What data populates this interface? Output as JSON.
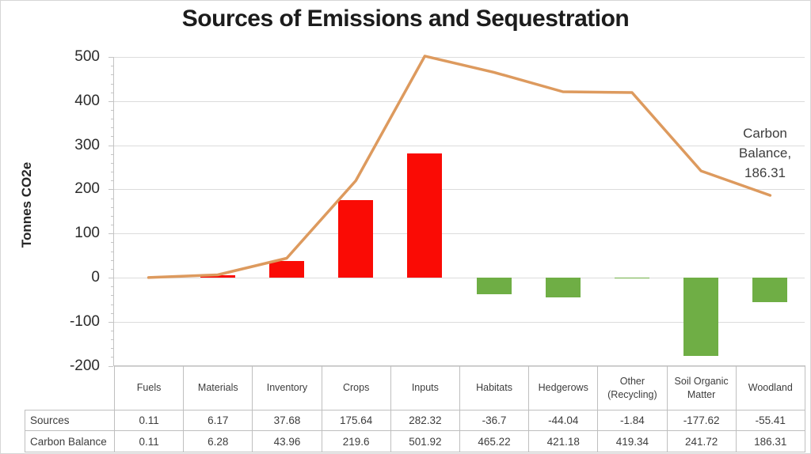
{
  "title": "Sources of Emissions and Sequestration",
  "y_axis": {
    "label": "Tonnes CO2e",
    "ticks": [
      500,
      400,
      300,
      200,
      100,
      0,
      -100,
      -200
    ]
  },
  "annotation": {
    "text": "Carbon Balance, 186.31"
  },
  "colors": {
    "positive_bar": "#fa0b05",
    "negative_bar": "#6fae45",
    "line": "#dd9a5e",
    "gridline": "#dcdcdc",
    "axis": "#c4c4c4",
    "table_border": "#bfbfbf",
    "text": "#3d3d3d"
  },
  "chart_data": {
    "type": "combo-bar-line-waterfall",
    "title": "Sources of Emissions and Sequestration",
    "xlabel": "",
    "ylabel": "Tonnes CO2e",
    "ylim": [
      -200,
      500
    ],
    "grid": "horizontal",
    "legend_position": "none (inline annotation at line end)",
    "categories": [
      "Fuels",
      "Materials",
      "Inventory",
      "Crops",
      "Inputs",
      "Habitats",
      "Hedgerows",
      "Other (Recycling)",
      "Soil Organic Matter",
      "Woodland"
    ],
    "series": [
      {
        "name": "Sources",
        "type": "bar",
        "values": [
          0.11,
          6.17,
          37.68,
          175.64,
          282.32,
          -36.7,
          -44.04,
          -1.84,
          -177.62,
          -55.41
        ],
        "display": [
          "0.11",
          "6.17",
          "37.68",
          "175.64",
          "282.32",
          "-36.7",
          "-44.04",
          "-1.84",
          "-177.62",
          "-55.41"
        ]
      },
      {
        "name": "Carbon Balance",
        "type": "line",
        "values": [
          0.11,
          6.28,
          43.96,
          219.6,
          501.92,
          465.22,
          421.18,
          419.34,
          241.72,
          186.31
        ],
        "display": [
          "0.11",
          "6.28",
          "43.96",
          "219.6",
          "501.92",
          "465.22",
          "421.18",
          "419.34",
          "241.72",
          "186.31"
        ]
      }
    ],
    "annotation": "Carbon Balance, 186.31"
  },
  "table": {
    "row_labels": [
      "Sources",
      "Carbon Balance"
    ]
  }
}
